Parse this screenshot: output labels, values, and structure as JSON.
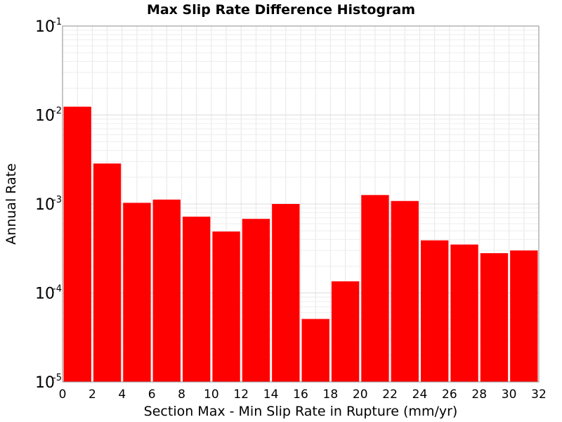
{
  "chart_data": {
    "type": "bar",
    "title": "Max Slip Rate Difference Histogram",
    "xlabel": "Section Max - Min Slip Rate in Rupture (mm/yr)",
    "ylabel": "Annual Rate",
    "yscale": "log",
    "ylim": [
      1e-05,
      0.1
    ],
    "xlim": [
      0,
      32
    ],
    "grid": true,
    "bar_color": "#ff0000",
    "xticks": [
      "0",
      "2",
      "4",
      "6",
      "8",
      "10",
      "12",
      "14",
      "16",
      "18",
      "20",
      "22",
      "24",
      "26",
      "28",
      "30",
      "32"
    ],
    "yticks": [
      {
        "base": "10",
        "exp": "-5"
      },
      {
        "base": "10",
        "exp": "-4"
      },
      {
        "base": "10",
        "exp": "-3"
      },
      {
        "base": "10",
        "exp": "-2"
      },
      {
        "base": "10",
        "exp": "-1"
      }
    ],
    "bins": [
      {
        "x": 1,
        "value": 0.0124
      },
      {
        "x": 3,
        "value": 0.00285
      },
      {
        "x": 5,
        "value": 0.00103
      },
      {
        "x": 7,
        "value": 0.00112
      },
      {
        "x": 9,
        "value": 0.00072
      },
      {
        "x": 11,
        "value": 0.00049
      },
      {
        "x": 13,
        "value": 0.00068
      },
      {
        "x": 15,
        "value": 0.001
      },
      {
        "x": 17,
        "value": 5.1e-05
      },
      {
        "x": 19,
        "value": 0.000135
      },
      {
        "x": 21,
        "value": 0.00126
      },
      {
        "x": 23,
        "value": 0.00108
      },
      {
        "x": 25,
        "value": 0.00039
      },
      {
        "x": 27,
        "value": 0.00035
      },
      {
        "x": 29,
        "value": 0.00028
      },
      {
        "x": 31,
        "value": 0.0003
      }
    ]
  }
}
